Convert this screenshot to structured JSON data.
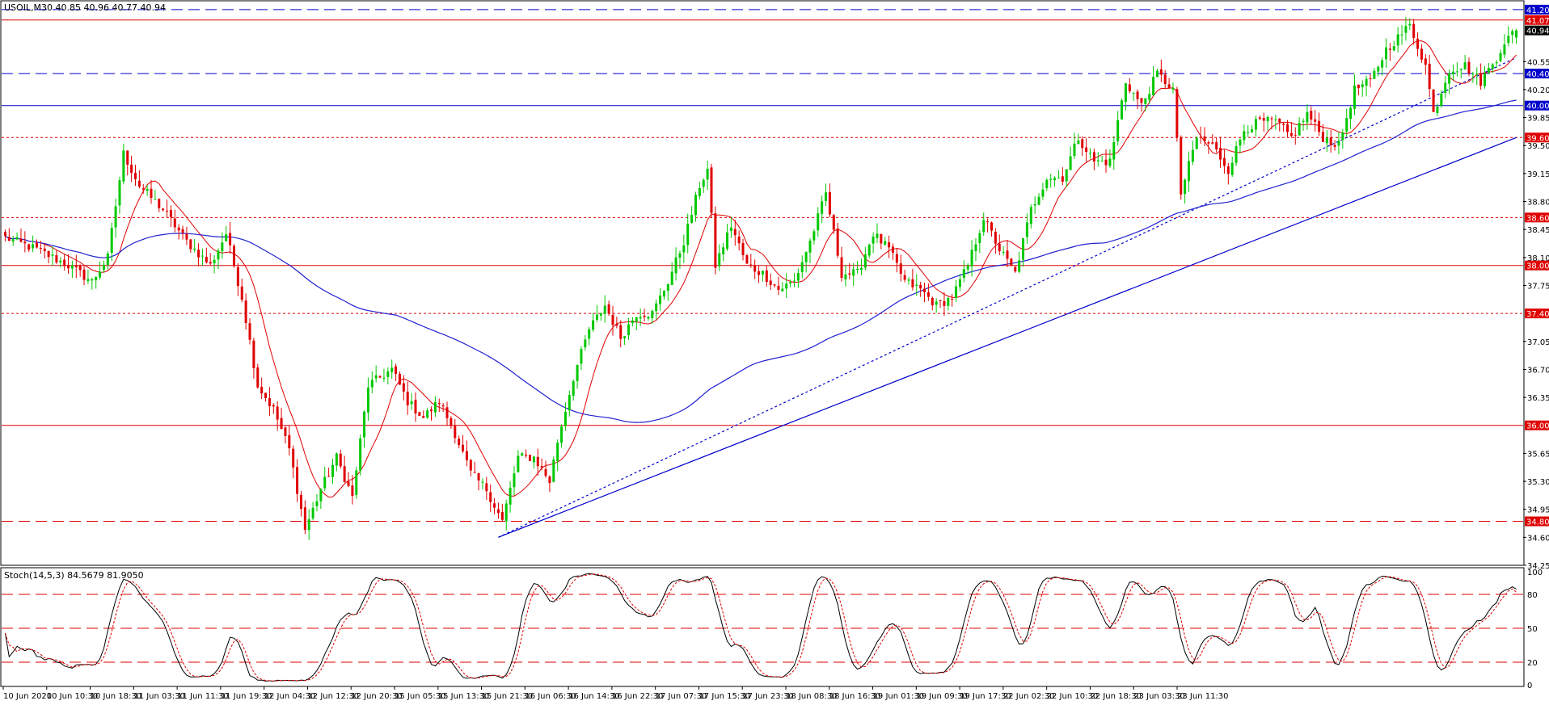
{
  "window": {
    "main_header": "USOIL,M30  40.85 40.96 40.77 40.94",
    "stoch_header": "Stoch(14,5,3) 84.5679 81.9050"
  },
  "colors": {
    "background": "#ffffff",
    "bull_candle": "#00c800",
    "bear_candle": "#e00000",
    "ma_fast": "#e00000",
    "ma_slow": "#2020d0",
    "support_blue": "#0000cc",
    "resistance_red": "#e00000",
    "stoch_main": "#000000",
    "stoch_signal": "#e00000"
  },
  "chart_data": [
    {
      "type": "candlestick",
      "symbol": "USOIL",
      "timeframe": "M30",
      "ohlc_last": {
        "open": 40.85,
        "high": 40.96,
        "low": 40.77,
        "close": 40.94
      },
      "ylim": [
        34.25,
        41.3
      ],
      "y_ticks": [
        "40.55",
        "40.20",
        "39.85",
        "39.50",
        "39.15",
        "38.80",
        "38.45",
        "38.10",
        "37.75",
        "37.05",
        "36.70",
        "36.35",
        "35.65",
        "35.30",
        "34.95",
        "34.60",
        "34.25"
      ],
      "x_ticks": [
        "10 Jun 2020",
        "10 Jun 10:30",
        "10 Jun 18:30",
        "11 Jun 03:30",
        "11 Jun 11:30",
        "11 Jun 19:30",
        "12 Jun 04:30",
        "12 Jun 12:30",
        "12 Jun 20:30",
        "15 Jun 05:30",
        "15 Jun 13:30",
        "15 Jun 21:30",
        "16 Jun 06:30",
        "16 Jun 14:30",
        "16 Jun 22:30",
        "17 Jun 07:30",
        "17 Jun 15:30",
        "17 Jun 23:30",
        "18 Jun 08:30",
        "18 Jun 16:30",
        "19 Jun 01:30",
        "19 Jun 09:30",
        "19 Jun 17:30",
        "22 Jun 02:30",
        "22 Jun 10:30",
        "22 Jun 18:30",
        "23 Jun 03:30",
        "23 Jun 11:30"
      ],
      "path_points": [
        [
          0,
          38.35
        ],
        [
          8,
          38.2
        ],
        [
          16,
          38.0
        ],
        [
          22,
          37.8
        ],
        [
          26,
          38.1
        ],
        [
          30,
          39.4
        ],
        [
          34,
          39.0
        ],
        [
          40,
          38.7
        ],
        [
          46,
          38.3
        ],
        [
          52,
          38.0
        ],
        [
          56,
          38.4
        ],
        [
          60,
          37.6
        ],
        [
          64,
          36.5
        ],
        [
          68,
          36.2
        ],
        [
          72,
          35.7
        ],
        [
          76,
          34.7
        ],
        [
          80,
          35.2
        ],
        [
          84,
          35.6
        ],
        [
          88,
          35.1
        ],
        [
          92,
          36.5
        ],
        [
          98,
          36.7
        ],
        [
          102,
          36.3
        ],
        [
          106,
          36.1
        ],
        [
          110,
          36.3
        ],
        [
          114,
          35.9
        ],
        [
          118,
          35.4
        ],
        [
          122,
          35.2
        ],
        [
          126,
          34.8
        ],
        [
          130,
          35.6
        ],
        [
          134,
          35.6
        ],
        [
          138,
          35.3
        ],
        [
          140,
          35.8
        ],
        [
          144,
          36.6
        ],
        [
          148,
          37.2
        ],
        [
          152,
          37.5
        ],
        [
          156,
          37.1
        ],
        [
          160,
          37.4
        ],
        [
          164,
          37.4
        ],
        [
          168,
          37.8
        ],
        [
          172,
          38.3
        ],
        [
          176,
          39.0
        ],
        [
          178,
          39.2
        ],
        [
          180,
          38.0
        ],
        [
          184,
          38.5
        ],
        [
          188,
          38.0
        ],
        [
          192,
          37.9
        ],
        [
          196,
          37.7
        ],
        [
          200,
          37.8
        ],
        [
          204,
          38.3
        ],
        [
          208,
          38.9
        ],
        [
          212,
          37.9
        ],
        [
          216,
          37.9
        ],
        [
          220,
          38.4
        ],
        [
          224,
          38.2
        ],
        [
          228,
          37.8
        ],
        [
          232,
          37.7
        ],
        [
          236,
          37.5
        ],
        [
          240,
          37.6
        ],
        [
          244,
          38.0
        ],
        [
          248,
          38.6
        ],
        [
          252,
          38.2
        ],
        [
          256,
          37.9
        ],
        [
          260,
          38.7
        ],
        [
          264,
          39.1
        ],
        [
          268,
          39.1
        ],
        [
          272,
          39.6
        ],
        [
          276,
          39.3
        ],
        [
          280,
          39.3
        ],
        [
          284,
          40.3
        ],
        [
          288,
          40.0
        ],
        [
          292,
          40.4
        ],
        [
          296,
          40.2
        ],
        [
          298,
          38.9
        ],
        [
          302,
          39.6
        ],
        [
          306,
          39.5
        ],
        [
          310,
          39.2
        ],
        [
          314,
          39.7
        ],
        [
          318,
          39.8
        ],
        [
          322,
          39.8
        ],
        [
          326,
          39.6
        ],
        [
          330,
          39.9
        ],
        [
          334,
          39.6
        ],
        [
          338,
          39.5
        ],
        [
          342,
          40.2
        ],
        [
          346,
          40.3
        ],
        [
          350,
          40.7
        ],
        [
          354,
          40.9
        ],
        [
          356,
          41.0
        ],
        [
          360,
          40.5
        ],
        [
          362,
          39.9
        ],
        [
          366,
          40.45
        ],
        [
          370,
          40.5
        ],
        [
          374,
          40.3
        ],
        [
          378,
          40.6
        ],
        [
          380,
          40.8
        ],
        [
          383,
          40.94
        ]
      ]
    },
    {
      "type": "line",
      "name": "Stoch(14,5,3)",
      "main_value": 84.5679,
      "signal_value": 81.905,
      "ylim": [
        0,
        100
      ],
      "y_ticks": [
        "100",
        "80",
        "50",
        "20",
        "0"
      ],
      "levels": [
        80,
        50,
        20
      ]
    }
  ],
  "levels": [
    {
      "label": "41.20",
      "value": 41.2,
      "style": "dashed",
      "color": "#0000cc"
    },
    {
      "label": "41.07",
      "value": 41.07,
      "style": "solid",
      "color": "#e00000"
    },
    {
      "label": "40.94",
      "value": 40.94,
      "style": "none",
      "color": "#000000"
    },
    {
      "label": "40.40",
      "value": 40.4,
      "style": "dashed",
      "color": "#0000cc"
    },
    {
      "label": "40.00",
      "value": 40.0,
      "style": "solid",
      "color": "#0000cc"
    },
    {
      "label": "39.60",
      "value": 39.6,
      "style": "dotted",
      "color": "#e00000"
    },
    {
      "label": "38.60",
      "value": 38.6,
      "style": "dotted",
      "color": "#e00000"
    },
    {
      "label": "38.00",
      "value": 38.0,
      "style": "solid",
      "color": "#e00000"
    },
    {
      "label": "37.40",
      "value": 37.4,
      "style": "dotted",
      "color": "#e00000"
    },
    {
      "label": "36.00",
      "value": 36.0,
      "style": "solid",
      "color": "#e00000"
    },
    {
      "label": "34.80",
      "value": 34.8,
      "style": "dashed",
      "color": "#e00000"
    }
  ],
  "trendlines": [
    {
      "name": "solid-trendline",
      "style": "solid",
      "from": [
        125,
        34.6
      ],
      "to": [
        383,
        39.6
      ]
    },
    {
      "name": "dotted-trendline",
      "style": "dotted",
      "from": [
        125,
        34.6
      ],
      "to": [
        383,
        40.6
      ]
    }
  ]
}
